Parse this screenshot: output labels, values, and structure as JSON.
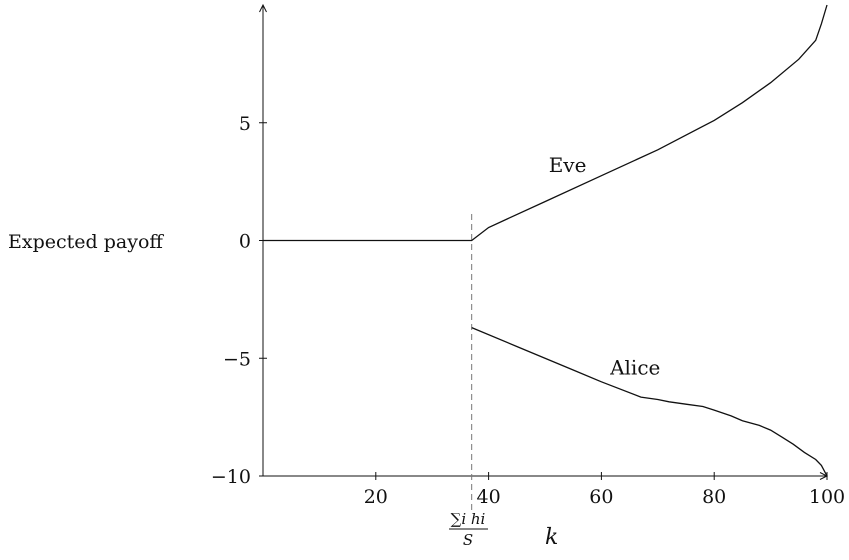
{
  "chart_data": {
    "type": "line",
    "ylabel": "Expected payoff",
    "xlabel": "k",
    "xlim": [
      0,
      100
    ],
    "ylim": [
      -10,
      10
    ],
    "x_ticks": [
      20,
      40,
      60,
      80,
      100
    ],
    "y_ticks": [
      -10,
      -5,
      0,
      5
    ],
    "marker": {
      "x": 37,
      "label_numerator": "∑i hi",
      "label_denominator": "S"
    },
    "grid": false,
    "legend": "none",
    "series": [
      {
        "name": "Eve",
        "points": [
          [
            0,
            0
          ],
          [
            35,
            0
          ],
          [
            37,
            0
          ],
          [
            40,
            0.55
          ],
          [
            50,
            1.65
          ],
          [
            60,
            2.75
          ],
          [
            70,
            3.85
          ],
          [
            80,
            5.1
          ],
          [
            85,
            5.85
          ],
          [
            90,
            6.7
          ],
          [
            95,
            7.7
          ],
          [
            98,
            8.5
          ],
          [
            99,
            9.2
          ],
          [
            100,
            10
          ]
        ]
      },
      {
        "name": "Alice",
        "points": [
          [
            37,
            -3.7
          ],
          [
            45,
            -4.5
          ],
          [
            55,
            -5.5
          ],
          [
            60,
            -6.0
          ],
          [
            67,
            -6.65
          ],
          [
            70,
            -6.75
          ],
          [
            72,
            -6.85
          ],
          [
            75,
            -6.95
          ],
          [
            78,
            -7.05
          ],
          [
            80,
            -7.2
          ],
          [
            83,
            -7.45
          ],
          [
            85,
            -7.65
          ],
          [
            88,
            -7.85
          ],
          [
            90,
            -8.05
          ],
          [
            92,
            -8.35
          ],
          [
            94,
            -8.65
          ],
          [
            96,
            -9.0
          ],
          [
            98,
            -9.3
          ],
          [
            99,
            -9.55
          ],
          [
            100,
            -10
          ]
        ]
      }
    ]
  }
}
